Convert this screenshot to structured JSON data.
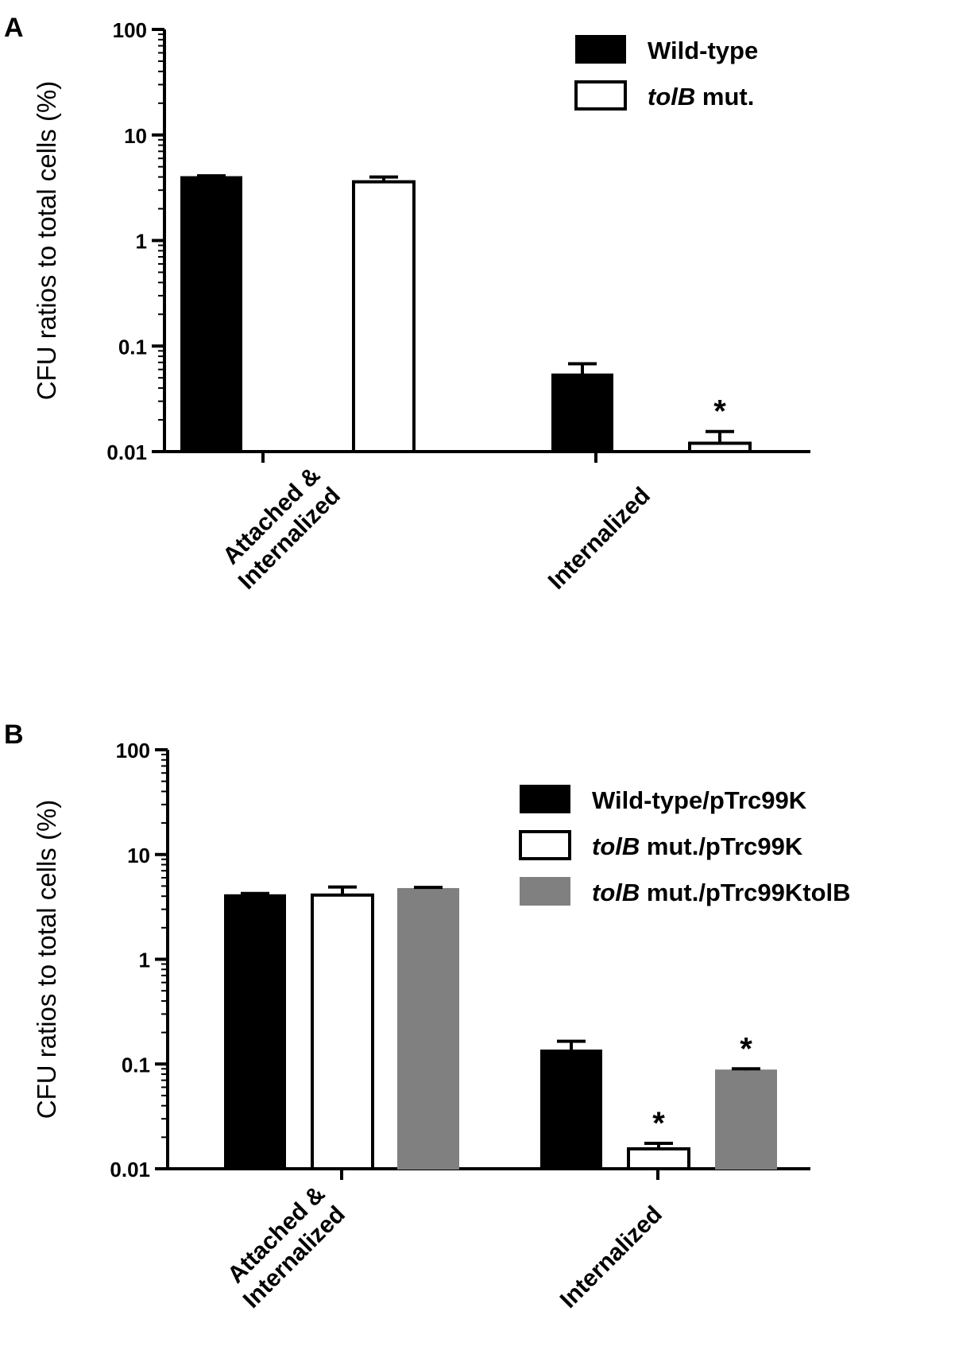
{
  "figure": {
    "panels": [
      {
        "label": "A",
        "ylabel": "CFU ratios to total cells (%)",
        "legend": [
          {
            "italic": "",
            "text": "Wild-type",
            "color": "#000000"
          },
          {
            "italic": "tolB",
            "text": " mut.",
            "color": "#ffffff"
          }
        ]
      },
      {
        "label": "B",
        "ylabel": "CFU ratios to total cells (%)",
        "legend": [
          {
            "italic": "",
            "text": "Wild-type/pTrc99K",
            "color": "#000000"
          },
          {
            "italic": "tolB",
            "text": " mut./pTrc99K",
            "color": "#ffffff"
          },
          {
            "italic": "tolB",
            "text": " mut./pTrc99KtolB",
            "color": "#808080"
          }
        ]
      }
    ]
  },
  "chart_data": [
    {
      "type": "bar",
      "panel": "A",
      "yscale": "log",
      "ylim": [
        0.01,
        100
      ],
      "yticks": [
        "100",
        "10",
        "1",
        "0.1",
        "0.01"
      ],
      "ylabel": "CFU ratios to total cells (%)",
      "categories": [
        [
          "Attached &",
          "Internalized"
        ],
        [
          "Internalized"
        ]
      ],
      "series": [
        {
          "name": "Wild-type",
          "color": "#000000",
          "values": [
            4.0,
            0.054
          ],
          "errors": [
            0.1,
            0.014
          ]
        },
        {
          "name": "tolB mut.",
          "color": "#ffffff",
          "values": [
            3.6,
            0.012
          ],
          "errors": [
            0.4,
            0.0035
          ]
        }
      ],
      "significance": [
        [
          null,
          null
        ],
        [
          null,
          "*"
        ]
      ],
      "legend_position": "top-right"
    },
    {
      "type": "bar",
      "panel": "B",
      "yscale": "log",
      "ylim": [
        0.01,
        100
      ],
      "yticks": [
        "100",
        "10",
        "1",
        "0.1",
        "0.01"
      ],
      "ylabel": "CFU ratios to total cells (%)",
      "categories": [
        [
          "Attached &",
          "Internalized"
        ],
        [
          "Internalized"
        ]
      ],
      "series": [
        {
          "name": "Wild-type/pTrc99K",
          "color": "#000000",
          "values": [
            4.1,
            0.135
          ],
          "errors": [
            0.15,
            0.03
          ]
        },
        {
          "name": "tolB mut./pTrc99K",
          "color": "#ffffff",
          "values": [
            4.1,
            0.0155
          ],
          "errors": [
            0.8,
            0.002
          ]
        },
        {
          "name": "tolB mut./pTrc99KtolB",
          "color": "#808080",
          "values": [
            4.7,
            0.087
          ],
          "errors": [
            0.15,
            0.003
          ]
        }
      ],
      "significance": [
        [
          null,
          null,
          null
        ],
        [
          null,
          "*",
          "*"
        ]
      ],
      "legend_position": "top-right"
    }
  ]
}
